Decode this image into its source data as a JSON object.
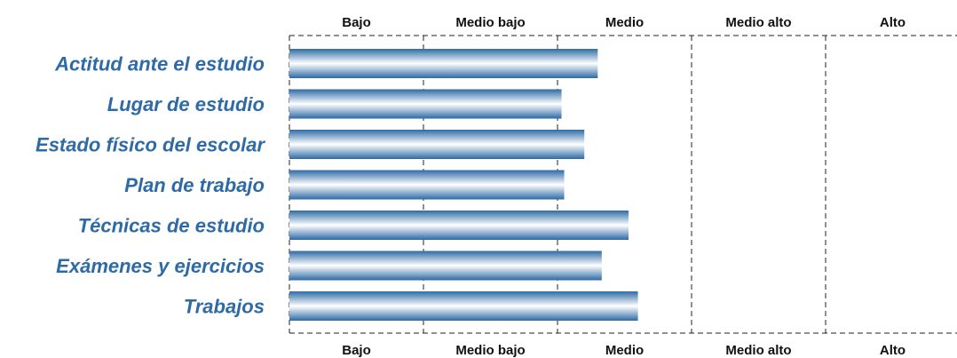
{
  "chart_data": {
    "type": "bar",
    "orientation": "horizontal",
    "categories": [
      "Actitud ante el estudio",
      "Lugar de estudio",
      "Estado físico del escolar",
      "Plan de trabajo",
      "Técnicas de estudio",
      "Exámenes y ejercicios",
      "Trabajos"
    ],
    "values": [
      2.3,
      2.03,
      2.2,
      2.05,
      2.53,
      2.33,
      2.6
    ],
    "bands": [
      "Bajo",
      "Medio bajo",
      "Medio",
      "Medio alto",
      "Alto"
    ],
    "xlim": [
      0,
      5
    ],
    "grid": "vertical dashed lines at band boundaries",
    "band_labels_position": "top and bottom",
    "colors": {
      "bar_dark": "#2e6aa6",
      "bar_light": "#ffffff",
      "label": "#2e6aa6",
      "band_text": "#111111"
    }
  }
}
